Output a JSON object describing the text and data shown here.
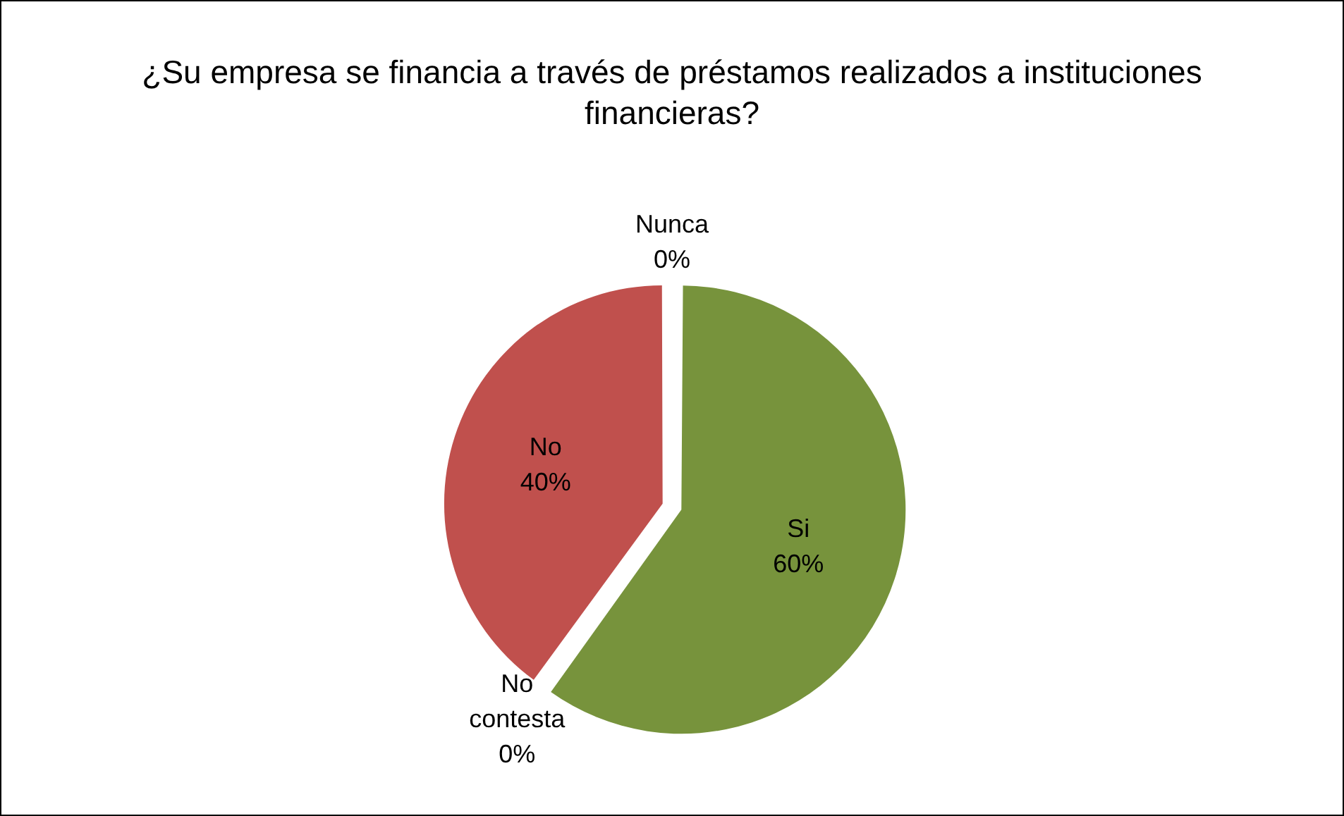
{
  "chart_data": {
    "type": "pie",
    "title": "¿Su empresa se financia a través de préstamos realizados a instituciones financieras?",
    "categories": [
      "Si",
      "No contesta",
      "No",
      "Nunca"
    ],
    "values": [
      60,
      0,
      40,
      0
    ],
    "value_labels": [
      "60%",
      "0%",
      "40%",
      "0%"
    ],
    "colors": [
      "#77933c",
      "#4f81bd",
      "#c0504d",
      "#8064a2"
    ],
    "legend": false
  }
}
